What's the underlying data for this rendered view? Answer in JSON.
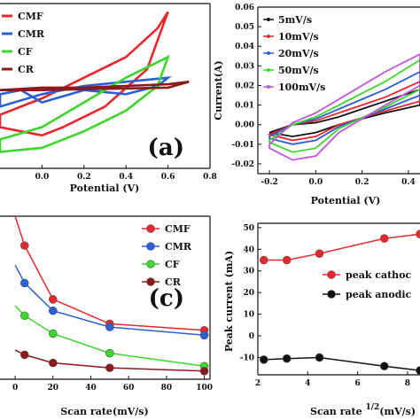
{
  "chart_data": [
    {
      "type": "line",
      "panel_label": "(a)",
      "xlabel": "Potential (V)",
      "ylabel": "",
      "xlim": [
        -0.2,
        0.8
      ],
      "ylim": [
        -1.0,
        1.0
      ],
      "x_ticks": [
        "0.0",
        "0.2",
        "0.4",
        "0.6",
        "0.8"
      ],
      "x_tick_values": [
        0.0,
        0.2,
        0.4,
        0.6,
        0.8
      ],
      "y_ticks": [],
      "legend": [
        "CMF",
        "CMR",
        "CF",
        "CR"
      ],
      "legend_position": "top-left",
      "series": [
        {
          "name": "CMF",
          "color": "#e8262b",
          "x": [
            -0.2,
            0.0,
            0.2,
            0.4,
            0.55,
            0.6,
            0.5,
            0.3,
            0.1,
            0.0,
            -0.1,
            -0.2
          ],
          "y": [
            -0.35,
            -0.15,
            0.1,
            0.35,
            0.7,
            0.9,
            0.2,
            -0.25,
            -0.5,
            -0.6,
            -0.55,
            -0.5
          ]
        },
        {
          "name": "CMR",
          "color": "#2b5fd6",
          "x": [
            -0.2,
            0.0,
            0.2,
            0.4,
            0.6,
            0.55,
            0.4,
            0.2,
            0.0,
            -0.1,
            -0.2
          ],
          "y": [
            -0.25,
            -0.1,
            0.0,
            0.05,
            0.1,
            0.0,
            -0.1,
            -0.05,
            -0.2,
            -0.05,
            -0.1
          ]
        },
        {
          "name": "CF",
          "color": "#3cd62c",
          "x": [
            -0.2,
            0.0,
            0.2,
            0.4,
            0.6,
            0.55,
            0.4,
            0.2,
            0.0,
            -0.2
          ],
          "y": [
            -0.65,
            -0.5,
            -0.2,
            0.1,
            0.35,
            0.0,
            -0.3,
            -0.55,
            -0.75,
            -0.8
          ]
        },
        {
          "name": "CR",
          "color": "#8b1a1a",
          "x": [
            -0.2,
            0.0,
            0.2,
            0.4,
            0.6,
            0.7,
            0.6,
            0.4,
            0.2,
            0.0,
            -0.2
          ],
          "y": [
            -0.05,
            -0.02,
            -0.02,
            0.0,
            0.02,
            0.05,
            -0.02,
            -0.03,
            -0.04,
            -0.05,
            -0.05
          ]
        }
      ]
    },
    {
      "type": "line",
      "panel_label": "",
      "xlabel": "Potential (V)",
      "ylabel": "Current(A)",
      "xlim": [
        -0.25,
        0.45
      ],
      "ylim": [
        -0.025,
        0.06
      ],
      "x_ticks": [
        "-0.2",
        "0.0",
        "0.2",
        "0.4"
      ],
      "x_tick_values": [
        -0.2,
        0.0,
        0.2,
        0.4
      ],
      "y_ticks": [
        "-0.02",
        "-0.01",
        "0.00",
        "0.01",
        "0.02",
        "0.03",
        "0.04",
        "0.05",
        "0.06"
      ],
      "y_tick_values": [
        -0.02,
        -0.01,
        0.0,
        0.01,
        0.02,
        0.03,
        0.04,
        0.05,
        0.06
      ],
      "legend": [
        "5mV/s",
        "10mV/s",
        "20mV/s",
        "50mV/s",
        "100mV/s"
      ],
      "legend_position": "top-left",
      "series": [
        {
          "name": "5mV/s",
          "color": "#111111",
          "x": [
            -0.2,
            -0.1,
            0.0,
            0.1,
            0.2,
            0.3,
            0.45,
            0.45,
            0.3,
            0.1,
            0.0,
            -0.1,
            -0.2
          ],
          "y": [
            -0.004,
            0.0,
            0.001,
            0.004,
            0.008,
            0.012,
            0.018,
            0.01,
            0.006,
            0.0,
            -0.004,
            -0.006,
            -0.004
          ]
        },
        {
          "name": "10mV/s",
          "color": "#e8262b",
          "x": [
            -0.2,
            -0.1,
            0.0,
            0.1,
            0.2,
            0.3,
            0.45,
            0.45,
            0.3,
            0.1,
            0.0,
            -0.1,
            -0.2
          ],
          "y": [
            -0.005,
            0.0,
            0.002,
            0.006,
            0.01,
            0.014,
            0.022,
            0.012,
            0.007,
            0.0,
            -0.006,
            -0.008,
            -0.005
          ]
        },
        {
          "name": "20mV/s",
          "color": "#2b5fd6",
          "x": [
            -0.2,
            -0.1,
            0.0,
            0.1,
            0.2,
            0.3,
            0.45,
            0.45,
            0.3,
            0.1,
            0.0,
            -0.1,
            -0.2
          ],
          "y": [
            -0.006,
            0.0,
            0.003,
            0.008,
            0.013,
            0.018,
            0.027,
            0.015,
            0.008,
            -0.001,
            -0.008,
            -0.01,
            -0.007
          ]
        },
        {
          "name": "50mV/s",
          "color": "#3cd62c",
          "x": [
            -0.2,
            -0.1,
            0.0,
            0.1,
            0.2,
            0.3,
            0.45,
            0.45,
            0.3,
            0.1,
            0.0,
            -0.1,
            -0.2
          ],
          "y": [
            -0.008,
            0.0,
            0.004,
            0.01,
            0.016,
            0.022,
            0.033,
            0.018,
            0.009,
            -0.002,
            -0.012,
            -0.014,
            -0.009
          ]
        },
        {
          "name": "100mV/s",
          "color": "#c252e0",
          "x": [
            -0.2,
            -0.1,
            0.0,
            0.1,
            0.2,
            0.3,
            0.45,
            0.45,
            0.3,
            0.1,
            0.0,
            -0.1,
            -0.2
          ],
          "y": [
            -0.01,
            0.001,
            0.006,
            0.013,
            0.02,
            0.027,
            0.036,
            0.02,
            0.01,
            -0.004,
            -0.016,
            -0.018,
            -0.012
          ]
        }
      ]
    },
    {
      "type": "line",
      "panel_label": "(c)",
      "xlabel": "Scan rate(mV/s)",
      "ylabel": "",
      "xlim": [
        -8,
        103
      ],
      "ylim": [
        0,
        100
      ],
      "x_ticks": [
        "0",
        "20",
        "40",
        "60",
        "80",
        "100"
      ],
      "x_tick_values": [
        0,
        20,
        40,
        60,
        80,
        100
      ],
      "y_ticks": [],
      "legend": [
        "CMF",
        "CMR",
        "CF",
        "CR"
      ],
      "legend_position": "top-right",
      "x": [
        5,
        20,
        50,
        100
      ],
      "series": [
        {
          "name": "CMF",
          "color": "#e8262b",
          "values": [
            82,
            49,
            34,
            30
          ]
        },
        {
          "name": "CMR",
          "color": "#2b5fd6",
          "values": [
            59,
            42,
            32,
            27
          ]
        },
        {
          "name": "CF",
          "color": "#3cd62c",
          "values": [
            39,
            28,
            16,
            8
          ]
        },
        {
          "name": "CR",
          "color": "#8b1a1a",
          "values": [
            15,
            10,
            7,
            5
          ]
        }
      ],
      "series_x_extra": {
        "CMF": [
          [
            0,
            100
          ],
          [
            5,
            82
          ]
        ],
        "CMR": [
          [
            0,
            70
          ],
          [
            5,
            59
          ]
        ],
        "CF": [
          [
            0,
            45
          ],
          [
            5,
            39
          ]
        ],
        "CR": [
          [
            0,
            18
          ],
          [
            5,
            15
          ]
        ]
      }
    },
    {
      "type": "line",
      "panel_label": "",
      "xlabel": "Scan rate",
      "xlabel_superscript": "1/2",
      "xlabel_suffix": "(mV/s)",
      "ylabel": "Peak current (mA)",
      "xlim": [
        2,
        8.5
      ],
      "ylim": [
        -18,
        52
      ],
      "x_ticks": [
        "2",
        "4",
        "6",
        "8"
      ],
      "x_tick_values": [
        2,
        4,
        6,
        8
      ],
      "y_ticks": [
        "-10",
        "0",
        "10",
        "20",
        "30",
        "40",
        "50"
      ],
      "y_tick_values": [
        -10,
        0,
        10,
        20,
        30,
        40,
        50
      ],
      "legend": [
        "peak cathoc",
        "peak anodic"
      ],
      "legend_position": "center-right",
      "series": [
        {
          "name": "peak cathoc",
          "color": "#e8262b",
          "x": [
            2.24,
            3.16,
            4.47,
            7.07,
            8.5
          ],
          "y": [
            35,
            35,
            38,
            45,
            47
          ]
        },
        {
          "name": "peak anodic",
          "color": "#111111",
          "x": [
            2.24,
            3.16,
            4.47,
            7.07,
            8.5
          ],
          "y": [
            -11,
            -10.5,
            -10,
            -14,
            -16
          ]
        }
      ]
    }
  ]
}
